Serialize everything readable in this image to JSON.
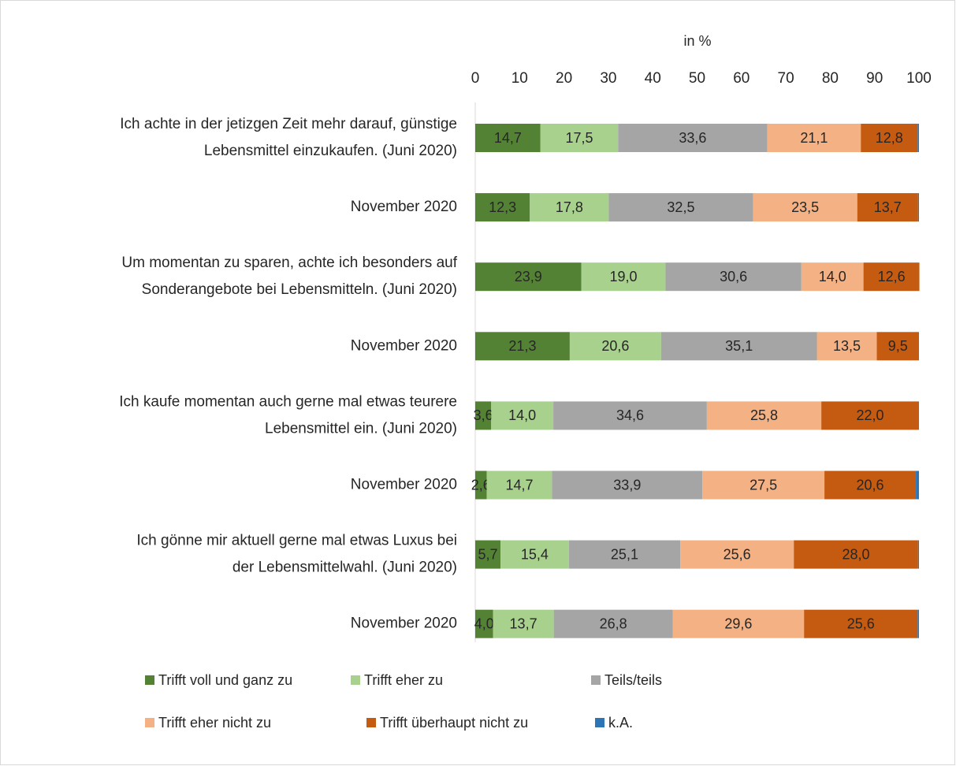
{
  "chart_data": {
    "type": "stacked-bar-horizontal",
    "x_label": "in %",
    "categories": [
      [
        "Ich achte in der jetizgen Zeit mehr darauf, günstige",
        "Lebensmittel einzukaufen. (Juni 2020)"
      ],
      [
        "November 2020"
      ],
      [
        "Um momentan zu sparen, achte ich besonders auf",
        "Sonderangebote bei Lebensmitteln. (Juni 2020)"
      ],
      [
        "November 2020"
      ],
      [
        "Ich kaufe momentan auch gerne mal etwas teurere",
        "Lebensmittel ein. (Juni 2020)"
      ],
      [
        "November 2020"
      ],
      [
        "Ich gönne mir aktuell gerne mal etwas Luxus bei",
        "der Lebensmittelwahl. (Juni 2020)"
      ],
      [
        "November 2020"
      ]
    ],
    "series": [
      {
        "name": "Trifft voll und ganz zu",
        "color": "#548235",
        "values": [
          14.7,
          12.3,
          23.9,
          21.3,
          3.6,
          2.6,
          5.7,
          4.0
        ],
        "value_labels": [
          "14,7",
          "12,3",
          "23,9",
          "21,3",
          "3,6",
          "2,6",
          "5,7",
          "4,0"
        ]
      },
      {
        "name": "Trifft eher zu",
        "color": "#a9d18e",
        "values": [
          17.5,
          17.8,
          19.0,
          20.6,
          14.0,
          14.7,
          15.4,
          13.7
        ],
        "value_labels": [
          "17,5",
          "17,8",
          "19,0",
          "20,6",
          "14,0",
          "14,7",
          "15,4",
          "13,7"
        ]
      },
      {
        "name": "Teils/teils",
        "color": "#a5a5a5",
        "values": [
          33.6,
          32.5,
          30.6,
          35.1,
          34.6,
          33.9,
          25.1,
          26.8
        ],
        "value_labels": [
          "33,6",
          "32,5",
          "30,6",
          "35,1",
          "34,6",
          "33,9",
          "25,1",
          "26,8"
        ]
      },
      {
        "name": "Trifft eher nicht zu",
        "color": "#f4b183",
        "values": [
          21.1,
          23.5,
          14.0,
          13.5,
          25.8,
          27.5,
          25.6,
          29.6
        ],
        "value_labels": [
          "21,1",
          "23,5",
          "14,0",
          "13,5",
          "25,8",
          "27,5",
          "25,6",
          "29,6"
        ]
      },
      {
        "name": "Trifft überhaupt nicht zu",
        "color": "#c55a11",
        "values": [
          12.8,
          13.7,
          12.6,
          9.5,
          22.0,
          20.6,
          28.0,
          25.6
        ],
        "value_labels": [
          "12,8",
          "13,7",
          "12,6",
          "9,5",
          "22,0",
          "20,6",
          "28,0",
          "25,6"
        ]
      },
      {
        "name": "k.A.",
        "color": "#2e75b6",
        "values": [
          0.3,
          0.2,
          0,
          0,
          0,
          0.7,
          0.2,
          0.3
        ]
      }
    ],
    "xlim": [
      0,
      100
    ],
    "xticks": [
      0,
      10,
      20,
      30,
      40,
      50,
      60,
      70,
      80,
      90,
      100
    ],
    "legend": "bottom"
  }
}
